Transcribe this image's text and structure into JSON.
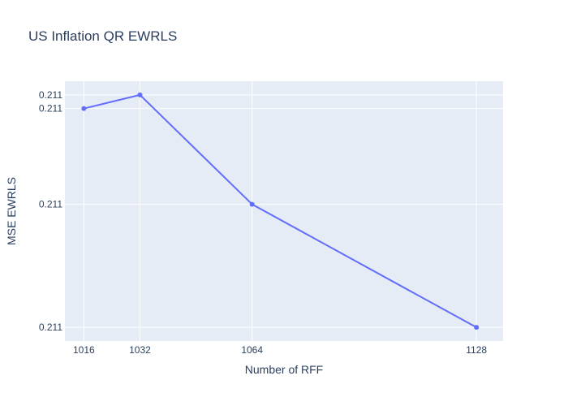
{
  "chart_data": {
    "type": "line",
    "title": "US Inflation QR EWRLS",
    "xlabel": "Number of RFF",
    "ylabel": "MSE EWRLS",
    "x": [
      1016,
      1032,
      1064,
      1128
    ],
    "series": [
      {
        "values": [
          0.21098,
          0.211,
          0.21084,
          0.21066
        ]
      }
    ],
    "xlim": [
      1010.6,
      1135.6
    ],
    "ylim": [
      0.21064,
      0.21102
    ],
    "x_ticks": [
      1016,
      1032,
      1064,
      1128
    ],
    "y_ticks": [
      {
        "value": 0.21066,
        "label": "0.211"
      },
      {
        "value": 0.21084,
        "label": "0.211"
      },
      {
        "value": 0.21098,
        "label": "0.211"
      },
      {
        "value": 0.211,
        "label": "0.211"
      }
    ],
    "grid": true,
    "legend": "none",
    "colors": {
      "line": "#636efa",
      "plot_background": "#e5ecf6",
      "grid": "#ffffff",
      "text": "#2a3f5f"
    }
  }
}
